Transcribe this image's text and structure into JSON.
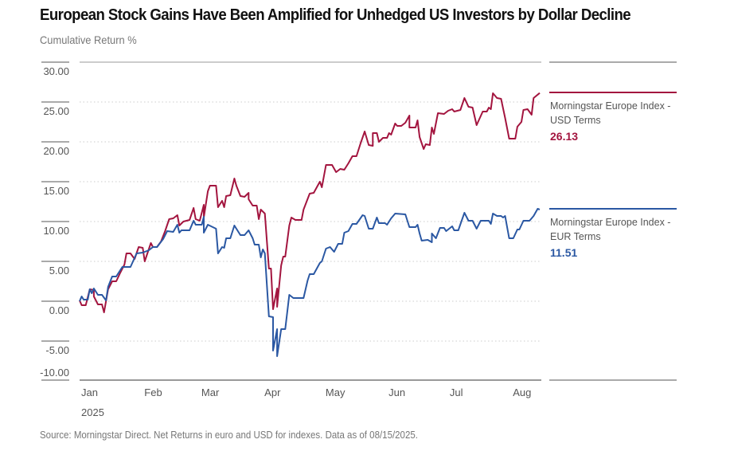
{
  "chart_data": {
    "type": "line",
    "title": "European Stock Gains Have Been Amplified for Unhedged US Investors by Dollar Decline",
    "ylabel": "Cumulative Return %",
    "xlabel": "",
    "x_unit": "days since Jan 1, 2025",
    "ylim": [
      -10,
      30
    ],
    "yticks": [
      "30.00",
      "25.00",
      "20.00",
      "15.00",
      "10.00",
      "5.00",
      "0.00",
      "-5.00",
      "-10.00"
    ],
    "ytick_values": [
      30,
      25,
      20,
      15,
      10,
      5,
      0,
      -5,
      -10
    ],
    "xticks": [
      {
        "label": "Jan",
        "day": 0
      },
      {
        "label": "Feb",
        "day": 31
      },
      {
        "label": "Mar",
        "day": 59
      },
      {
        "label": "Apr",
        "day": 90
      },
      {
        "label": "May",
        "day": 120
      },
      {
        "label": "Jun",
        "day": 151
      },
      {
        "label": "Jul",
        "day": 181
      },
      {
        "label": "Aug",
        "day": 212
      }
    ],
    "year_label": "2025",
    "grid": true,
    "legend_placement": "right",
    "source": "Source: Morningstar Direct. Net Returns in euro and USD for indexes. Data as of 08/15/2025.",
    "series": [
      {
        "name_line1": "Morningstar Europe Index -",
        "name_line2": "USD Terms",
        "end_value": "26.13",
        "color": "#a3153f",
        "points": [
          [
            0,
            0.1
          ],
          [
            1,
            -0.5
          ],
          [
            3,
            -0.5
          ],
          [
            5,
            1.5
          ],
          [
            7,
            1.4
          ],
          [
            7,
            0.6
          ],
          [
            9,
            -0.4
          ],
          [
            11,
            -0.4
          ],
          [
            12,
            -1.4
          ],
          [
            14,
            1.5
          ],
          [
            16,
            2.5
          ],
          [
            18,
            2.5
          ],
          [
            20,
            3.6
          ],
          [
            22,
            4.6
          ],
          [
            23,
            6.0
          ],
          [
            25,
            6.0
          ],
          [
            27,
            5.3
          ],
          [
            29,
            6.8
          ],
          [
            31,
            6.7
          ],
          [
            32,
            5.0
          ],
          [
            35,
            7.3
          ],
          [
            36,
            6.8
          ],
          [
            38,
            6.8
          ],
          [
            40,
            7.5
          ],
          [
            42,
            8.8
          ],
          [
            44,
            10.3
          ],
          [
            46,
            10.4
          ],
          [
            48,
            10.8
          ],
          [
            49,
            9.5
          ],
          [
            51,
            10.0
          ],
          [
            54,
            10.2
          ],
          [
            56,
            11.7
          ],
          [
            57,
            10.3
          ],
          [
            59,
            10.1
          ],
          [
            61,
            12.1
          ],
          [
            61,
            10.5
          ],
          [
            63,
            13.8
          ],
          [
            64,
            14.5
          ],
          [
            67,
            14.5
          ],
          [
            68,
            11.8
          ],
          [
            70,
            12.6
          ],
          [
            71,
            11.8
          ],
          [
            72,
            13.2
          ],
          [
            74,
            13.3
          ],
          [
            76,
            15.4
          ],
          [
            77,
            14.5
          ],
          [
            79,
            13.2
          ],
          [
            81,
            13.1
          ],
          [
            83,
            13.6
          ],
          [
            83,
            12.8
          ],
          [
            85,
            12.0
          ],
          [
            87,
            12.0
          ],
          [
            88,
            10.3
          ],
          [
            89,
            11.5
          ],
          [
            91,
            11.0
          ],
          [
            93,
            4.1
          ],
          [
            94,
            4.1
          ],
          [
            95,
            -1.0
          ],
          [
            97,
            1.6
          ],
          [
            97,
            -0.7
          ],
          [
            99,
            4.5
          ],
          [
            100,
            5.6
          ],
          [
            101,
            5.6
          ],
          [
            103,
            9.5
          ],
          [
            104,
            10.5
          ],
          [
            106,
            10.2
          ],
          [
            109,
            10.2
          ],
          [
            110,
            11.5
          ],
          [
            113,
            13.5
          ],
          [
            115,
            13.6
          ],
          [
            118,
            15.0
          ],
          [
            119,
            14.3
          ],
          [
            121,
            17.1
          ],
          [
            124,
            17.1
          ],
          [
            126,
            16.2
          ],
          [
            128,
            16.6
          ],
          [
            130,
            16.5
          ],
          [
            132,
            17.3
          ],
          [
            134,
            18.2
          ],
          [
            136,
            18.2
          ],
          [
            138,
            19.8
          ],
          [
            140,
            21.3
          ],
          [
            142,
            19.6
          ],
          [
            144,
            19.5
          ],
          [
            144,
            21.1
          ],
          [
            146,
            21.1
          ],
          [
            147,
            20.0
          ],
          [
            149,
            20.5
          ],
          [
            151,
            20.5
          ],
          [
            152,
            21.1
          ],
          [
            153,
            20.9
          ],
          [
            155,
            22.3
          ],
          [
            156,
            22.0
          ],
          [
            158,
            22.0
          ],
          [
            160,
            22.4
          ],
          [
            162,
            23.3
          ],
          [
            162,
            21.8
          ],
          [
            165,
            21.8
          ],
          [
            166,
            22.7
          ],
          [
            167,
            20.6
          ],
          [
            169,
            19.1
          ],
          [
            170,
            19.7
          ],
          [
            172,
            19.6
          ],
          [
            173,
            21.8
          ],
          [
            174,
            21.0
          ],
          [
            176,
            23.6
          ],
          [
            179,
            23.5
          ],
          [
            181,
            23.9
          ],
          [
            183,
            24.1
          ],
          [
            184,
            23.8
          ],
          [
            187,
            24.0
          ],
          [
            189,
            25.5
          ],
          [
            191,
            24.4
          ],
          [
            193,
            24.3
          ],
          [
            195,
            22.1
          ],
          [
            198,
            23.8
          ],
          [
            200,
            23.8
          ],
          [
            201,
            24.3
          ],
          [
            202,
            24.1
          ],
          [
            203,
            26.1
          ],
          [
            205,
            25.5
          ],
          [
            207,
            25.4
          ],
          [
            209,
            23.0
          ],
          [
            211,
            20.4
          ],
          [
            214,
            20.4
          ],
          [
            215,
            21.9
          ],
          [
            217,
            22.5
          ],
          [
            218,
            24.0
          ],
          [
            220,
            24.1
          ],
          [
            222,
            23.4
          ],
          [
            223,
            25.5
          ],
          [
            226,
            26.13
          ]
        ]
      },
      {
        "name_line1": "Morningstar Europe Index -",
        "name_line2": "EUR Terms",
        "end_value": "11.51",
        "color": "#2b58a3",
        "points": [
          [
            0,
            0
          ],
          [
            1,
            0.6
          ],
          [
            2,
            0.2
          ],
          [
            4,
            0.2
          ],
          [
            5,
            1.5
          ],
          [
            6,
            1.0
          ],
          [
            7,
            1.6
          ],
          [
            9,
            0.8
          ],
          [
            11,
            0.8
          ],
          [
            13,
            0.1
          ],
          [
            14,
            1.8
          ],
          [
            16,
            3.1
          ],
          [
            18,
            3.1
          ],
          [
            21,
            4.3
          ],
          [
            25,
            4.3
          ],
          [
            28,
            6.0
          ],
          [
            31,
            6.1
          ],
          [
            34,
            6.4
          ],
          [
            36,
            6.8
          ],
          [
            38,
            6.8
          ],
          [
            41,
            7.8
          ],
          [
            43,
            8.8
          ],
          [
            46,
            8.7
          ],
          [
            48,
            9.6
          ],
          [
            49,
            8.6
          ],
          [
            50,
            8.9
          ],
          [
            54,
            8.9
          ],
          [
            56,
            10.1
          ],
          [
            57,
            9.6
          ],
          [
            60,
            9.6
          ],
          [
            61,
            10.6
          ],
          [
            61,
            8.6
          ],
          [
            63,
            9.6
          ],
          [
            67,
            9.1
          ],
          [
            68,
            6.0
          ],
          [
            70,
            6.8
          ],
          [
            71,
            6.7
          ],
          [
            72,
            7.9
          ],
          [
            74,
            7.9
          ],
          [
            76,
            9.5
          ],
          [
            79,
            8.3
          ],
          [
            81,
            8.3
          ],
          [
            83,
            8.9
          ],
          [
            85,
            7.9
          ],
          [
            86,
            7.1
          ],
          [
            88,
            7.1
          ],
          [
            89,
            5.5
          ],
          [
            90,
            6.5
          ],
          [
            91,
            6.0
          ],
          [
            93,
            -1.9
          ],
          [
            95,
            -2.0
          ],
          [
            95,
            -6.2
          ],
          [
            97,
            -3.5
          ],
          [
            97,
            -6.9
          ],
          [
            99,
            -3.5
          ],
          [
            101,
            -3.5
          ],
          [
            103,
            0.8
          ],
          [
            105,
            0.4
          ],
          [
            110,
            0.4
          ],
          [
            112,
            2.6
          ],
          [
            113,
            3.4
          ],
          [
            115,
            3.4
          ],
          [
            118,
            4.8
          ],
          [
            119,
            5.0
          ],
          [
            121,
            6.6
          ],
          [
            123,
            6.8
          ],
          [
            125,
            6.2
          ],
          [
            127,
            7.2
          ],
          [
            129,
            7.2
          ],
          [
            130,
            8.6
          ],
          [
            132,
            8.8
          ],
          [
            134,
            9.7
          ],
          [
            136,
            9.7
          ],
          [
            139,
            10.8
          ],
          [
            140,
            10.7
          ],
          [
            142,
            9.1
          ],
          [
            144,
            9.1
          ],
          [
            146,
            10.5
          ],
          [
            147,
            9.8
          ],
          [
            150,
            9.8
          ],
          [
            151,
            9.6
          ],
          [
            153,
            10.4
          ],
          [
            155,
            11.0
          ],
          [
            160,
            10.9
          ],
          [
            162,
            9.3
          ],
          [
            165,
            9.3
          ],
          [
            166,
            9.6
          ],
          [
            167,
            8.5
          ],
          [
            168,
            7.6
          ],
          [
            171,
            7.7
          ],
          [
            173,
            7.4
          ],
          [
            173,
            8.5
          ],
          [
            175,
            7.9
          ],
          [
            177,
            9.2
          ],
          [
            179,
            9.2
          ],
          [
            180,
            8.8
          ],
          [
            183,
            9.4
          ],
          [
            184,
            8.9
          ],
          [
            186,
            8.9
          ],
          [
            189,
            11.1
          ],
          [
            191,
            10.1
          ],
          [
            193,
            10.1
          ],
          [
            195,
            9.1
          ],
          [
            197,
            10.1
          ],
          [
            201,
            10.1
          ],
          [
            202,
            9.7
          ],
          [
            203,
            11.0
          ],
          [
            205,
            10.7
          ],
          [
            207,
            10.7
          ],
          [
            208,
            10.5
          ],
          [
            209,
            10.7
          ],
          [
            211,
            7.9
          ],
          [
            213,
            7.9
          ],
          [
            215,
            9.0
          ],
          [
            216,
            9.0
          ],
          [
            218,
            10.1
          ],
          [
            221,
            10.1
          ],
          [
            223,
            10.7
          ],
          [
            225,
            11.6
          ],
          [
            226,
            11.51
          ]
        ]
      }
    ]
  }
}
